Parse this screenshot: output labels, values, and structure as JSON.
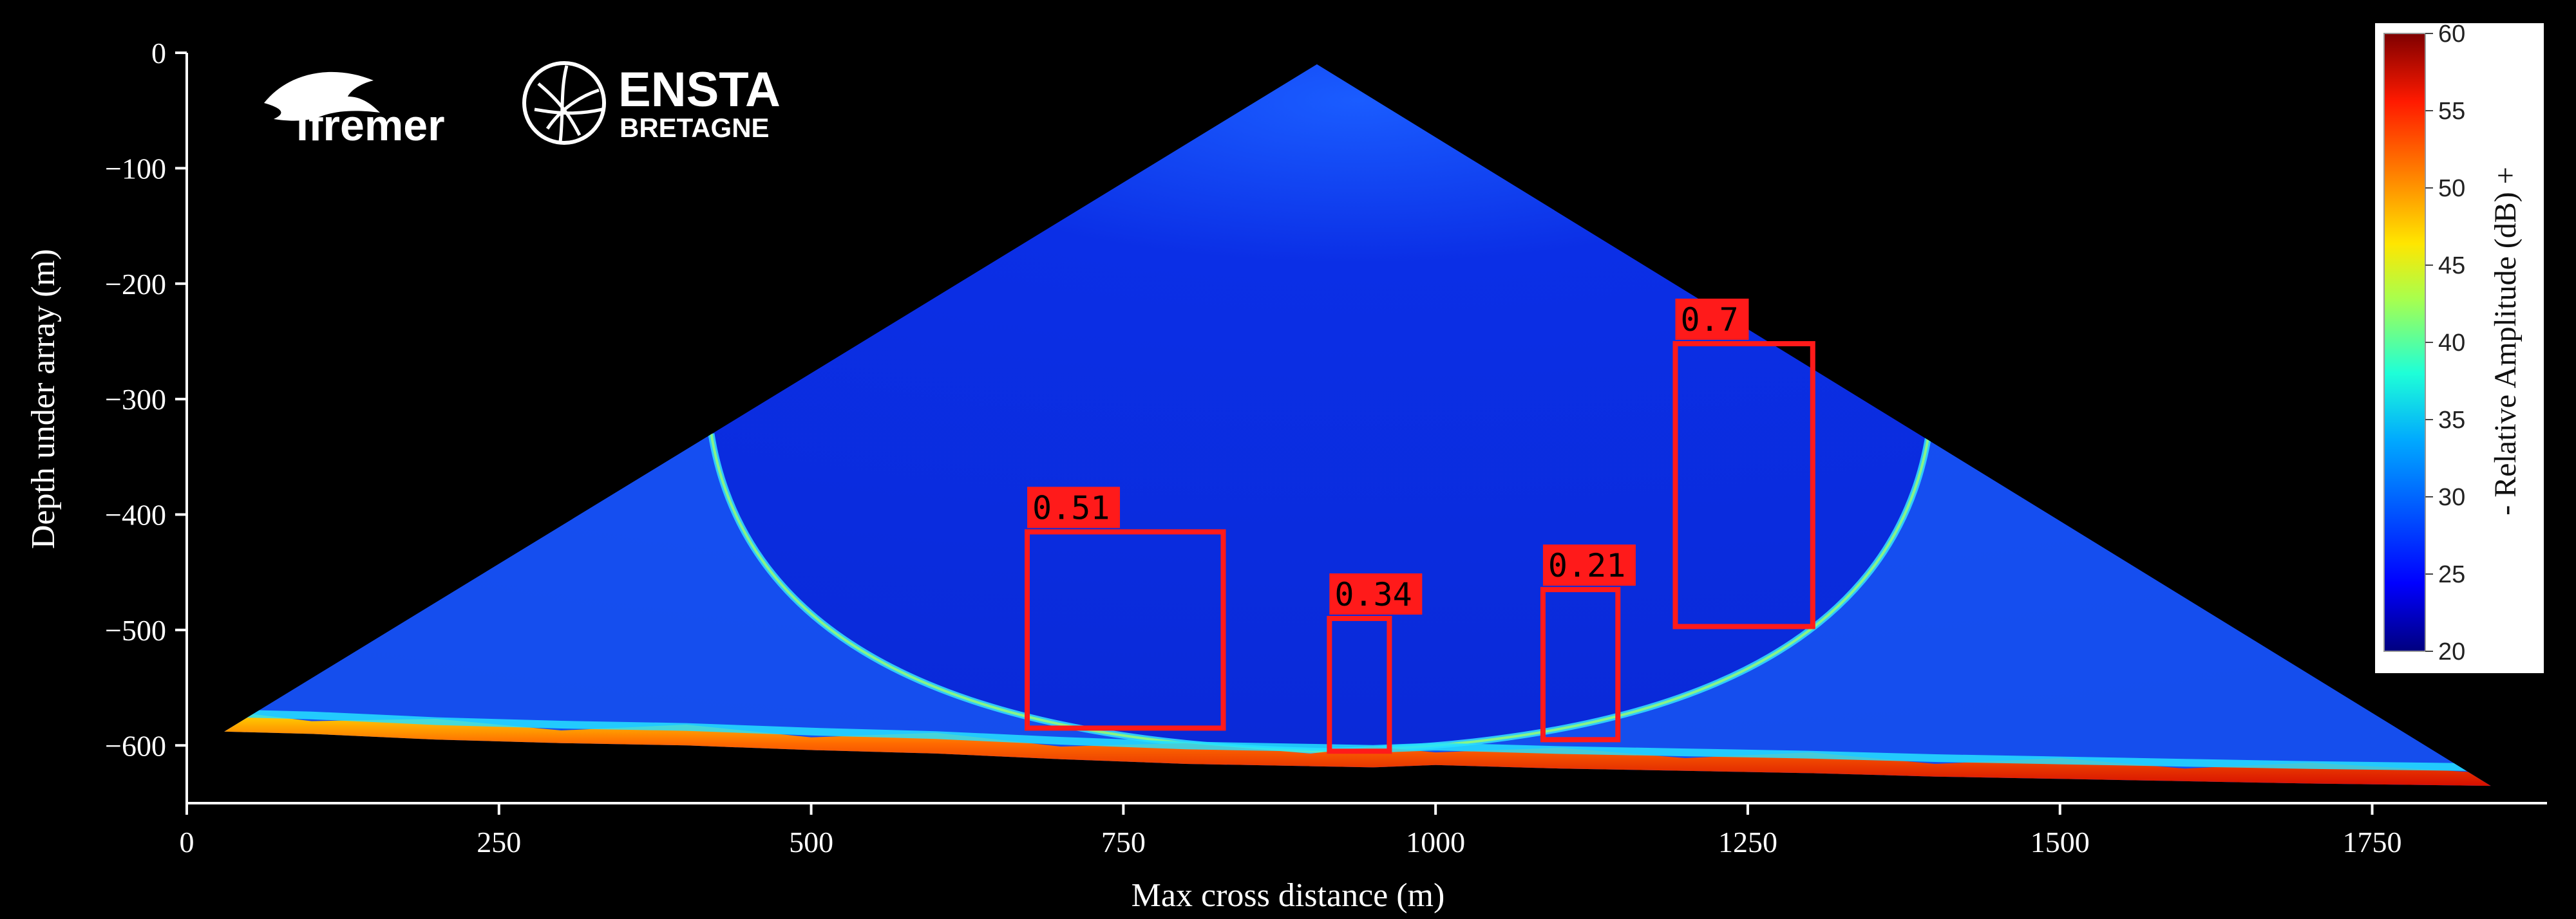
{
  "chart_data": {
    "type": "heatmap",
    "title": "",
    "xlabel": "Max cross distance (m)",
    "ylabel": "Depth under array (m)",
    "xlim": [
      0,
      1890
    ],
    "ylim": [
      -650,
      0
    ],
    "x_ticks": [
      0,
      250,
      500,
      750,
      1000,
      1250,
      1500,
      1750
    ],
    "y_ticks": [
      0,
      -100,
      -200,
      -300,
      -400,
      -500,
      -600
    ],
    "x_tick_labels": [
      "0",
      "250",
      "500",
      "750",
      "1000",
      "1250",
      "1500",
      "1750"
    ],
    "y_tick_labels": [
      "0",
      "−100",
      "−200",
      "−300",
      "−400",
      "−500",
      "−600"
    ],
    "fan": {
      "apex": [
        905,
        -10
      ],
      "left_edge": [
        30,
        -588
      ],
      "right_edge": [
        1845,
        -635
      ],
      "seafloor": [
        [
          30,
          -588
        ],
        [
          100,
          -590
        ],
        [
          200,
          -595
        ],
        [
          300,
          -598
        ],
        [
          400,
          -600
        ],
        [
          500,
          -604
        ],
        [
          600,
          -607
        ],
        [
          700,
          -612
        ],
        [
          800,
          -616
        ],
        [
          900,
          -618
        ],
        [
          950,
          -619
        ],
        [
          1000,
          -617
        ],
        [
          1100,
          -620
        ],
        [
          1200,
          -622
        ],
        [
          1300,
          -624
        ],
        [
          1400,
          -627
        ],
        [
          1500,
          -629
        ],
        [
          1600,
          -631
        ],
        [
          1700,
          -633
        ],
        [
          1845,
          -635
        ]
      ],
      "arc_left_top": [
        420,
        -330
      ],
      "arc_right_top": [
        1395,
        -330
      ],
      "arc_bottom": [
        910,
        -605
      ]
    },
    "detections": [
      {
        "label": "0.51",
        "x": [
          673,
          830
        ],
        "y": [
          -415,
          -585
        ]
      },
      {
        "label": "0.34",
        "x": [
          915,
          963
        ],
        "y": [
          -490,
          -605
        ]
      },
      {
        "label": "0.21",
        "x": [
          1086,
          1146
        ],
        "y": [
          -465,
          -595
        ]
      },
      {
        "label": "0.7",
        "x": [
          1192,
          1302
        ],
        "y": [
          -252,
          -497
        ]
      }
    ],
    "colorbar": {
      "title": "-  Relative Amplitude (dB)  +",
      "min": 20,
      "max": 60,
      "ticks": [
        20,
        25,
        30,
        35,
        40,
        45,
        50,
        55,
        60
      ],
      "tick_labels": [
        "20",
        "25",
        "30",
        "35",
        "40",
        "45",
        "50",
        "55",
        "60"
      ],
      "colormap": "jet"
    }
  },
  "logos": {
    "ifremer": "Ifremer",
    "ensta_line1": "ENSTA",
    "ensta_line2": "BRETAGNE"
  },
  "colors": {
    "background": "#000000",
    "fan_fill": "#0a2fea",
    "detection_box": "#ff1a1a",
    "axis": "#ffffff"
  }
}
